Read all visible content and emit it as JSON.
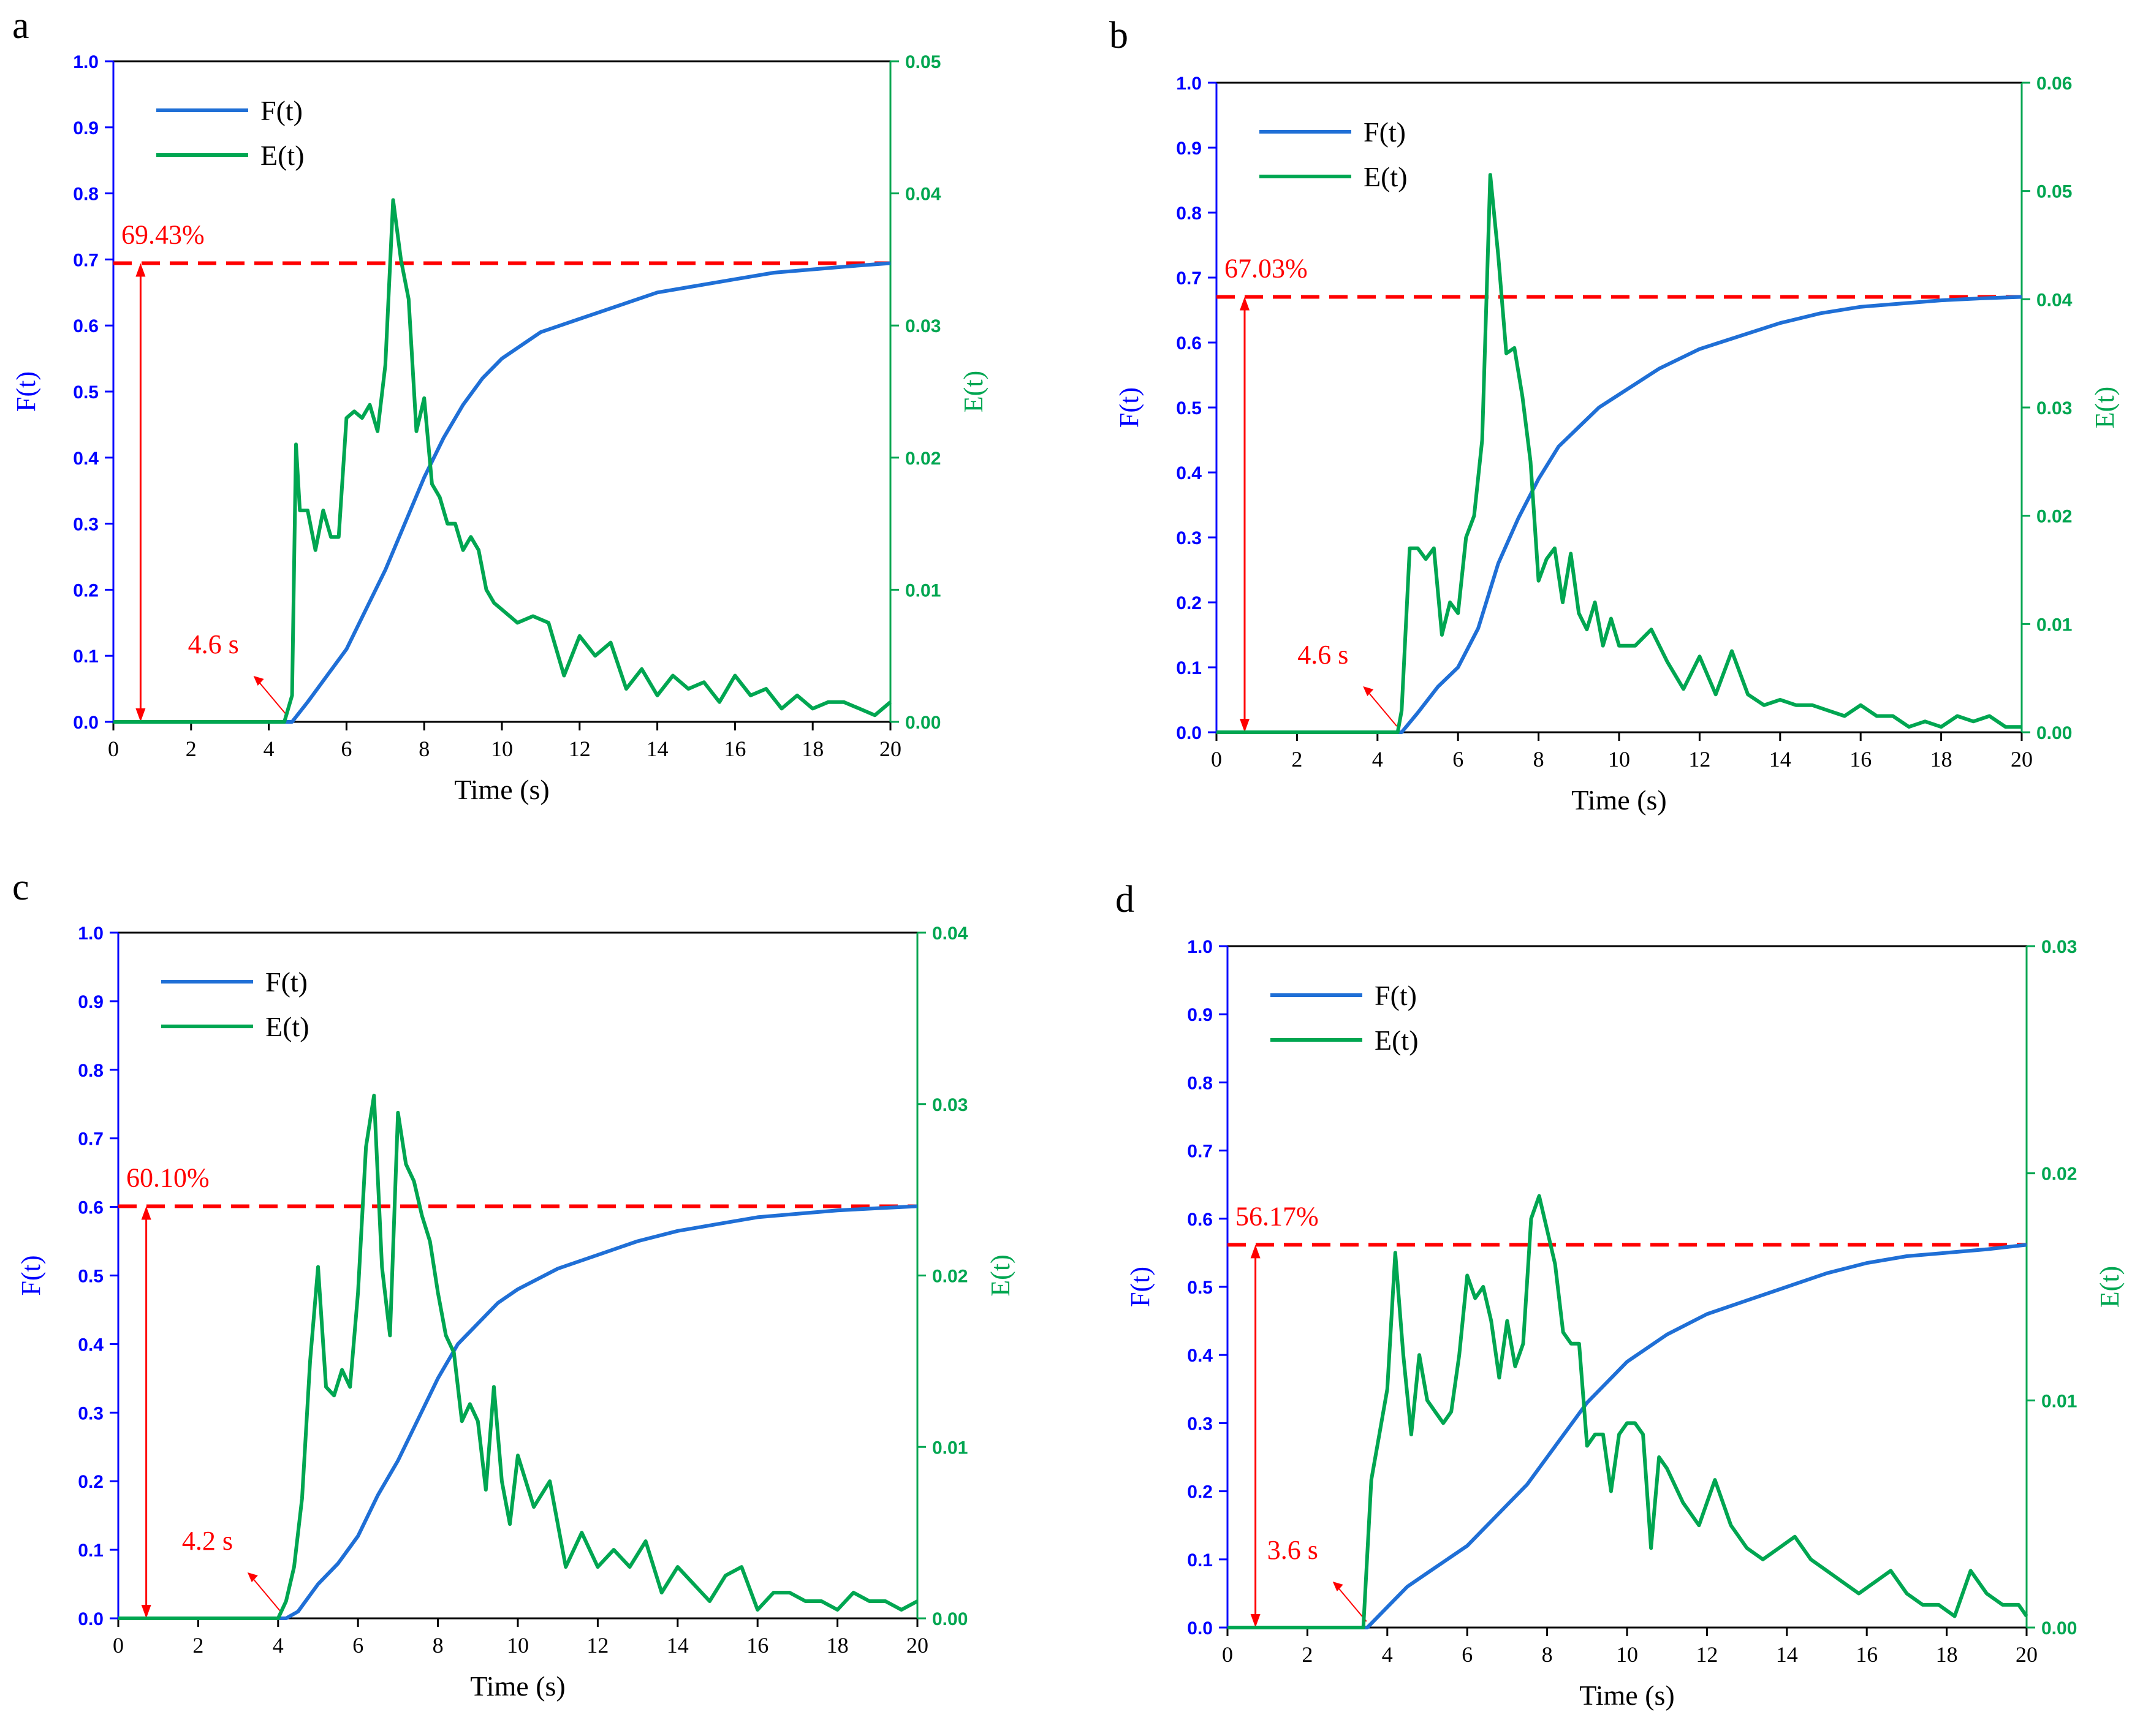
{
  "colors": {
    "f_curve": "#1f6fd6",
    "e_curve": "#00a651",
    "f_axis": "#0000ff",
    "e_axis": "#00a651",
    "annotation": "#ff0000"
  },
  "chart_data": [
    {
      "panel": "a",
      "type": "line",
      "xlabel": "Time (s)",
      "ylabel": "F(t)",
      "y2label": "E(t)",
      "xlim": [
        0,
        20
      ],
      "ylim": [
        0,
        1.0
      ],
      "y2lim": [
        0,
        0.05
      ],
      "xticks": [
        "0",
        "2",
        "4",
        "6",
        "8",
        "10",
        "12",
        "14",
        "16",
        "18",
        "20"
      ],
      "yticks": [
        "0.0",
        "0.1",
        "0.2",
        "0.3",
        "0.4",
        "0.5",
        "0.6",
        "0.7",
        "0.8",
        "0.9",
        "1.0"
      ],
      "y2ticks": [
        "0.00",
        "0.01",
        "0.02",
        "0.03",
        "0.04",
        "0.05"
      ],
      "legend": [
        "F(t)",
        "E(t)"
      ],
      "plateau_label": "69.43%",
      "plateau_value": 0.6943,
      "onset_label": "4.6 s",
      "onset_time": 4.6,
      "F": {
        "x": [
          0,
          4.4,
          4.6,
          5,
          5.5,
          6,
          6.5,
          7,
          7.5,
          8,
          8.5,
          9,
          9.5,
          10,
          11,
          12,
          13,
          14,
          15,
          16,
          17,
          18,
          19,
          20
        ],
        "y": [
          0,
          0,
          0,
          0.03,
          0.07,
          0.11,
          0.17,
          0.23,
          0.3,
          0.37,
          0.43,
          0.48,
          0.52,
          0.55,
          0.59,
          0.61,
          0.63,
          0.65,
          0.66,
          0.67,
          0.68,
          0.685,
          0.69,
          0.6943
        ]
      },
      "E": {
        "x": [
          0,
          4.4,
          4.5,
          4.6,
          4.7,
          4.8,
          5.0,
          5.2,
          5.4,
          5.6,
          5.8,
          6.0,
          6.2,
          6.4,
          6.6,
          6.8,
          7.0,
          7.2,
          7.4,
          7.6,
          7.8,
          8.0,
          8.2,
          8.4,
          8.6,
          8.8,
          9.0,
          9.2,
          9.4,
          9.6,
          9.8,
          10.0,
          10.4,
          10.8,
          11.2,
          11.6,
          12.0,
          12.4,
          12.8,
          13.2,
          13.6,
          14.0,
          14.4,
          14.8,
          15.2,
          15.6,
          16.0,
          16.4,
          16.8,
          17.2,
          17.6,
          18.0,
          18.4,
          18.8,
          19.2,
          19.6,
          20.0
        ],
        "y": [
          0,
          0,
          0.001,
          0.002,
          0.021,
          0.016,
          0.016,
          0.013,
          0.016,
          0.014,
          0.014,
          0.023,
          0.0235,
          0.023,
          0.024,
          0.022,
          0.027,
          0.0395,
          0.035,
          0.032,
          0.022,
          0.0245,
          0.018,
          0.017,
          0.015,
          0.015,
          0.013,
          0.014,
          0.013,
          0.01,
          0.009,
          0.0085,
          0.0075,
          0.008,
          0.0075,
          0.0035,
          0.0065,
          0.005,
          0.006,
          0.0025,
          0.004,
          0.002,
          0.0035,
          0.0025,
          0.003,
          0.0015,
          0.0035,
          0.002,
          0.0025,
          0.001,
          0.002,
          0.001,
          0.0015,
          0.0015,
          0.001,
          0.0005,
          0.0015
        ]
      }
    },
    {
      "panel": "b",
      "type": "line",
      "xlabel": "Time (s)",
      "ylabel": "F(t)",
      "y2label": "E(t)",
      "xlim": [
        0,
        20
      ],
      "ylim": [
        0,
        1.0
      ],
      "y2lim": [
        0,
        0.06
      ],
      "xticks": [
        "0",
        "2",
        "4",
        "6",
        "8",
        "10",
        "12",
        "14",
        "16",
        "18",
        "20"
      ],
      "yticks": [
        "0.0",
        "0.1",
        "0.2",
        "0.3",
        "0.4",
        "0.5",
        "0.6",
        "0.7",
        "0.8",
        "0.9",
        "1.0"
      ],
      "y2ticks": [
        "0.00",
        "0.01",
        "0.02",
        "0.03",
        "0.04",
        "0.05",
        "0.06"
      ],
      "legend": [
        "F(t)",
        "E(t)"
      ],
      "plateau_label": "67.03%",
      "plateau_value": 0.6703,
      "onset_label": "4.6 s",
      "onset_time": 4.6,
      "F": {
        "x": [
          0,
          4.6,
          5,
          5.5,
          6,
          6.5,
          7,
          7.5,
          8,
          8.5,
          9,
          9.5,
          10,
          11,
          12,
          13,
          14,
          15,
          16,
          17,
          18,
          19,
          20
        ],
        "y": [
          0,
          0,
          0.03,
          0.07,
          0.1,
          0.16,
          0.26,
          0.33,
          0.39,
          0.44,
          0.47,
          0.5,
          0.52,
          0.56,
          0.59,
          0.61,
          0.63,
          0.645,
          0.655,
          0.66,
          0.665,
          0.668,
          0.6703
        ]
      },
      "E": {
        "x": [
          0,
          4.5,
          4.6,
          4.8,
          5.0,
          5.2,
          5.4,
          5.6,
          5.8,
          6.0,
          6.2,
          6.4,
          6.6,
          6.8,
          7.0,
          7.2,
          7.4,
          7.6,
          7.8,
          8.0,
          8.2,
          8.4,
          8.6,
          8.8,
          9.0,
          9.2,
          9.4,
          9.6,
          9.8,
          10.0,
          10.4,
          10.8,
          11.2,
          11.6,
          12.0,
          12.4,
          12.8,
          13.2,
          13.6,
          14.0,
          14.4,
          14.8,
          15.2,
          15.6,
          16.0,
          16.4,
          16.8,
          17.2,
          17.6,
          18.0,
          18.4,
          18.8,
          19.2,
          19.6,
          20.0
        ],
        "y": [
          0,
          0,
          0.002,
          0.017,
          0.017,
          0.016,
          0.017,
          0.009,
          0.012,
          0.011,
          0.018,
          0.02,
          0.027,
          0.0515,
          0.044,
          0.035,
          0.0355,
          0.031,
          0.025,
          0.014,
          0.016,
          0.017,
          0.012,
          0.0165,
          0.011,
          0.0095,
          0.012,
          0.008,
          0.0105,
          0.008,
          0.008,
          0.0095,
          0.0065,
          0.004,
          0.007,
          0.0035,
          0.0075,
          0.0035,
          0.0025,
          0.003,
          0.0025,
          0.0025,
          0.002,
          0.0015,
          0.0025,
          0.0015,
          0.0015,
          0.0005,
          0.001,
          0.0005,
          0.0015,
          0.001,
          0.0015,
          0.0005,
          0.0005
        ]
      }
    },
    {
      "panel": "c",
      "type": "line",
      "xlabel": "Time (s)",
      "ylabel": "F(t)",
      "y2label": "E(t)",
      "xlim": [
        0,
        20
      ],
      "ylim": [
        0,
        1.0
      ],
      "y2lim": [
        0,
        0.04
      ],
      "xticks": [
        "0",
        "2",
        "4",
        "6",
        "8",
        "10",
        "12",
        "14",
        "16",
        "18",
        "20"
      ],
      "yticks": [
        "0.0",
        "0.1",
        "0.2",
        "0.3",
        "0.4",
        "0.5",
        "0.6",
        "0.7",
        "0.8",
        "0.9",
        "1.0"
      ],
      "y2ticks": [
        "0.00",
        "0.01",
        "0.02",
        "0.03",
        "0.04"
      ],
      "legend": [
        "F(t)",
        "E(t)"
      ],
      "plateau_label": "60.10%",
      "plateau_value": 0.601,
      "onset_label": "4.2 s",
      "onset_time": 4.2,
      "F": {
        "x": [
          0,
          4.2,
          4.5,
          5,
          5.5,
          6,
          6.5,
          7,
          7.5,
          8,
          8.5,
          9,
          9.5,
          10,
          11,
          12,
          13,
          14,
          15,
          16,
          17,
          18,
          19,
          20
        ],
        "y": [
          0,
          0,
          0.01,
          0.05,
          0.08,
          0.12,
          0.18,
          0.23,
          0.29,
          0.35,
          0.4,
          0.43,
          0.46,
          0.48,
          0.51,
          0.53,
          0.55,
          0.565,
          0.575,
          0.585,
          0.59,
          0.595,
          0.598,
          0.601
        ]
      },
      "E": {
        "x": [
          0,
          4.0,
          4.2,
          4.4,
          4.6,
          4.8,
          5.0,
          5.2,
          5.4,
          5.6,
          5.8,
          6.0,
          6.2,
          6.4,
          6.6,
          6.8,
          7.0,
          7.2,
          7.4,
          7.6,
          7.8,
          8.0,
          8.2,
          8.4,
          8.6,
          8.8,
          9.0,
          9.2,
          9.4,
          9.6,
          9.8,
          10.0,
          10.4,
          10.8,
          11.2,
          11.6,
          12.0,
          12.4,
          12.8,
          13.2,
          13.6,
          14.0,
          14.4,
          14.8,
          15.2,
          15.6,
          16.0,
          16.4,
          16.8,
          17.2,
          17.6,
          18.0,
          18.4,
          18.8,
          19.2,
          19.6,
          20.0
        ],
        "y": [
          0,
          0,
          0.001,
          0.003,
          0.007,
          0.015,
          0.0205,
          0.0135,
          0.013,
          0.0145,
          0.0135,
          0.019,
          0.0275,
          0.0305,
          0.0205,
          0.0165,
          0.0295,
          0.0265,
          0.0255,
          0.0235,
          0.022,
          0.019,
          0.0165,
          0.0155,
          0.0115,
          0.0125,
          0.0115,
          0.0075,
          0.0135,
          0.008,
          0.0055,
          0.0095,
          0.0065,
          0.008,
          0.003,
          0.005,
          0.003,
          0.004,
          0.003,
          0.0045,
          0.0015,
          0.003,
          0.002,
          0.001,
          0.0025,
          0.003,
          0.0005,
          0.0015,
          0.0015,
          0.001,
          0.001,
          0.0005,
          0.0015,
          0.001,
          0.001,
          0.0005,
          0.001
        ]
      }
    },
    {
      "panel": "d",
      "type": "line",
      "xlabel": "Time (s)",
      "ylabel": "F(t)",
      "y2label": "E(t)",
      "xlim": [
        0,
        20
      ],
      "ylim": [
        0,
        1.0
      ],
      "y2lim": [
        0,
        0.03
      ],
      "xticks": [
        "0",
        "2",
        "4",
        "6",
        "8",
        "10",
        "12",
        "14",
        "16",
        "18",
        "20"
      ],
      "yticks": [
        "0.0",
        "0.1",
        "0.2",
        "0.3",
        "0.4",
        "0.5",
        "0.6",
        "0.7",
        "0.8",
        "0.9",
        "1.0"
      ],
      "y2ticks": [
        "0.00",
        "0.01",
        "0.02",
        "0.03"
      ],
      "legend": [
        "F(t)",
        "E(t)"
      ],
      "plateau_label": "56.17%",
      "plateau_value": 0.5617,
      "onset_label": "3.6 s",
      "onset_time": 3.6,
      "F": {
        "x": [
          0,
          3.5,
          4,
          4.5,
          5,
          5.5,
          6,
          6.5,
          7,
          7.5,
          8,
          8.5,
          9,
          9.5,
          10,
          11,
          12,
          13,
          14,
          15,
          16,
          17,
          18,
          19,
          20
        ],
        "y": [
          0,
          0,
          0.03,
          0.06,
          0.08,
          0.1,
          0.12,
          0.15,
          0.18,
          0.21,
          0.25,
          0.29,
          0.33,
          0.36,
          0.39,
          0.43,
          0.46,
          0.48,
          0.5,
          0.52,
          0.535,
          0.545,
          0.55,
          0.555,
          0.5617
        ]
      },
      "E": {
        "x": [
          0,
          3.4,
          3.6,
          3.8,
          4.0,
          4.2,
          4.4,
          4.6,
          4.8,
          5.0,
          5.2,
          5.4,
          5.6,
          5.8,
          6.0,
          6.2,
          6.4,
          6.6,
          6.8,
          7.0,
          7.2,
          7.4,
          7.6,
          7.8,
          8.0,
          8.2,
          8.4,
          8.6,
          8.8,
          9.0,
          9.2,
          9.4,
          9.6,
          9.8,
          10.0,
          10.2,
          10.4,
          10.6,
          10.8,
          11.0,
          11.4,
          11.8,
          12.2,
          12.6,
          13.0,
          13.4,
          13.8,
          14.2,
          14.6,
          15.0,
          15.4,
          15.8,
          16.2,
          16.6,
          17.0,
          17.4,
          17.8,
          18.2,
          18.6,
          19.0,
          19.4,
          19.8,
          20.0
        ],
        "y": [
          0,
          0,
          0.0065,
          0.0085,
          0.0105,
          0.0165,
          0.012,
          0.0085,
          0.012,
          0.01,
          0.0095,
          0.009,
          0.0095,
          0.012,
          0.0155,
          0.0145,
          0.015,
          0.0135,
          0.011,
          0.0135,
          0.0115,
          0.0125,
          0.018,
          0.019,
          0.0175,
          0.016,
          0.013,
          0.0125,
          0.0125,
          0.008,
          0.0085,
          0.0085,
          0.006,
          0.0085,
          0.009,
          0.009,
          0.0085,
          0.0035,
          0.0075,
          0.007,
          0.0055,
          0.0045,
          0.0065,
          0.0045,
          0.0035,
          0.003,
          0.0035,
          0.004,
          0.003,
          0.0025,
          0.002,
          0.0015,
          0.002,
          0.0025,
          0.0015,
          0.001,
          0.001,
          0.0005,
          0.0025,
          0.0015,
          0.001,
          0.001,
          0.0005
        ]
      }
    }
  ]
}
